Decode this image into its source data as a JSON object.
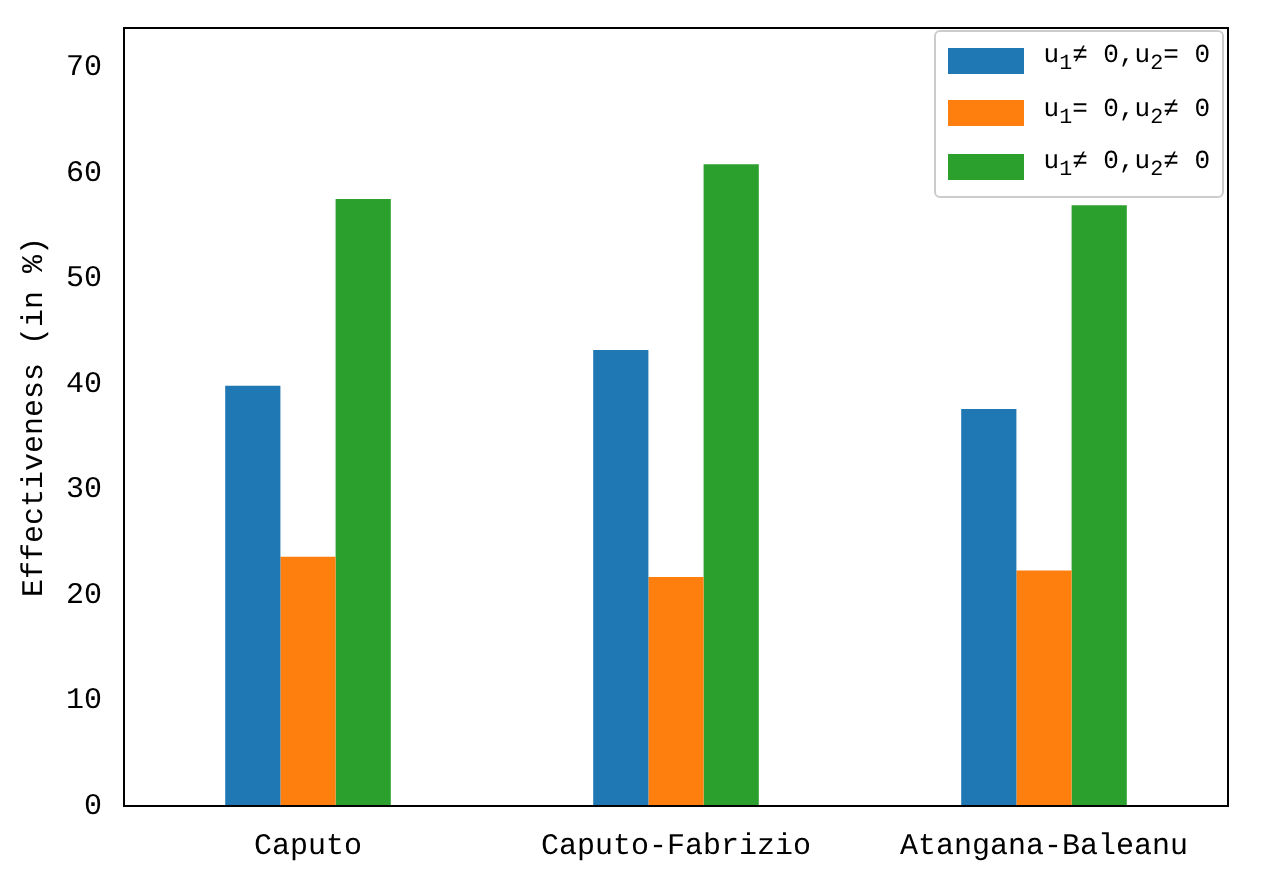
{
  "chart_data": {
    "type": "bar",
    "ylabel": "Effectiveness (in %)",
    "categories": [
      "Caputo",
      "Caputo-Fabrizio",
      "Atangana-Baleanu"
    ],
    "series": [
      {
        "name": "u$_{1}$≠ 0,u$_{2}$= 0",
        "color": "#1f77b4",
        "values": [
          39.8,
          43.2,
          37.6
        ]
      },
      {
        "name": "u$_{1}$= 0,u$_{2}$≠ 0",
        "color": "#ff7f0e",
        "values": [
          23.6,
          21.7,
          22.3
        ]
      },
      {
        "name": "u$_{1}$≠ 0,u$_{2}$≠ 0",
        "color": "#2ca02c",
        "values": [
          57.5,
          60.8,
          56.9
        ]
      }
    ],
    "ylim": [
      0,
      73.7
    ],
    "yticks": [
      0,
      10,
      20,
      30,
      40,
      50,
      60,
      70
    ],
    "grid": false,
    "legend": "top right"
  }
}
